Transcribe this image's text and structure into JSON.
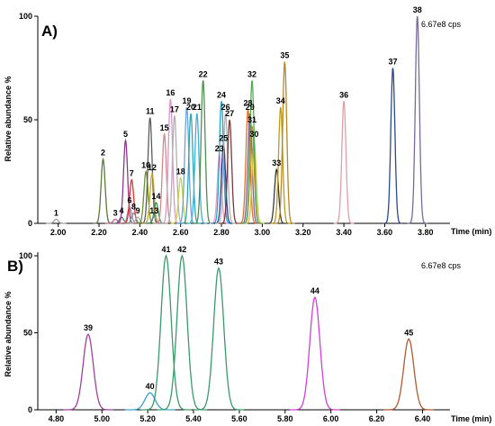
{
  "chart_data": [
    {
      "type": "line",
      "panel_label": "A)",
      "annotation": "6.67e8 cps",
      "xlabel": "Time (min)",
      "ylabel": "Relative abundance %",
      "xlim": [
        1.9,
        3.92
      ],
      "ylim": [
        0,
        100
      ],
      "xticks": [
        "2.00",
        "2.20",
        "2.40",
        "2.60",
        "2.80",
        "3.00",
        "3.20",
        "3.40",
        "3.60",
        "3.80"
      ],
      "yticks": [
        "0",
        "50",
        "100"
      ],
      "grid": false,
      "peaks": [
        {
          "label": "1",
          "rt": 1.99,
          "height": 2,
          "color": "#9aa0a6"
        },
        {
          "label": "2",
          "rt": 2.22,
          "height": 31,
          "color": "#5a7a3a"
        },
        {
          "label": "3",
          "rt": 2.28,
          "height": 2,
          "color": "#c06090"
        },
        {
          "label": "4",
          "rt": 2.31,
          "height": 3,
          "color": "#6a6a6a"
        },
        {
          "label": "5",
          "rt": 2.33,
          "height": 40,
          "color": "#8b3a8b"
        },
        {
          "label": "6",
          "rt": 2.35,
          "height": 8,
          "color": "#999999"
        },
        {
          "label": "7",
          "rt": 2.36,
          "height": 21,
          "color": "#e03030"
        },
        {
          "label": "8",
          "rt": 2.37,
          "height": 5,
          "color": "#888888"
        },
        {
          "label": "9",
          "rt": 2.39,
          "height": 3,
          "color": "#aaaaaa"
        },
        {
          "label": "10",
          "rt": 2.43,
          "height": 25,
          "color": "#6c8f2f"
        },
        {
          "label": "11",
          "rt": 2.45,
          "height": 51,
          "color": "#5a5a5a"
        },
        {
          "label": "12",
          "rt": 2.46,
          "height": 24,
          "color": "#c9a227"
        },
        {
          "label": "13",
          "rt": 2.47,
          "height": 3,
          "color": "#999999"
        },
        {
          "label": "14",
          "rt": 2.48,
          "height": 10,
          "color": "#3d8f5a"
        },
        {
          "label": "15",
          "rt": 2.52,
          "height": 43,
          "color": "#d08a8a"
        },
        {
          "label": "16",
          "rt": 2.55,
          "height": 60,
          "color": "#d49ac9"
        },
        {
          "label": "17",
          "rt": 2.57,
          "height": 52,
          "color": "#b0b0b0"
        },
        {
          "label": "18",
          "rt": 2.6,
          "height": 22,
          "color": "#c6d24a"
        },
        {
          "label": "19",
          "rt": 2.63,
          "height": 56,
          "color": "#6fa0d8"
        },
        {
          "label": "20",
          "rt": 2.65,
          "height": 53,
          "color": "#2aa8b8"
        },
        {
          "label": "21",
          "rt": 2.68,
          "height": 53,
          "color": "#40b0d8"
        },
        {
          "label": "22",
          "rt": 2.71,
          "height": 69,
          "color": "#4f8f4f"
        },
        {
          "label": "23",
          "rt": 2.79,
          "height": 33,
          "color": "#e8a0c8"
        },
        {
          "label": "24",
          "rt": 2.8,
          "height": 59,
          "color": "#1fa6c8"
        },
        {
          "label": "25",
          "rt": 2.81,
          "height": 38,
          "color": "#2a3f9a"
        },
        {
          "label": "26",
          "rt": 2.82,
          "height": 53,
          "color": "#b3b3b3"
        },
        {
          "label": "27",
          "rt": 2.84,
          "height": 50,
          "color": "#7a3a3a"
        },
        {
          "label": "28",
          "rt": 2.93,
          "height": 55,
          "color": "#e07020"
        },
        {
          "label": "29",
          "rt": 2.94,
          "height": 53,
          "color": "#7a5aa8"
        },
        {
          "label": "30",
          "rt": 2.96,
          "height": 40,
          "color": "#d4c040"
        },
        {
          "label": "31",
          "rt": 2.95,
          "height": 47,
          "color": "#c09020"
        },
        {
          "label": "32",
          "rt": 2.95,
          "height": 69,
          "color": "#4caf50"
        },
        {
          "label": "33",
          "rt": 3.07,
          "height": 26,
          "color": "#3a3a3a"
        },
        {
          "label": "34",
          "rt": 3.09,
          "height": 56,
          "color": "#b89c20"
        },
        {
          "label": "35",
          "rt": 3.11,
          "height": 78,
          "color": "#b8862a"
        },
        {
          "label": "36",
          "rt": 3.4,
          "height": 59,
          "color": "#e0a0a8"
        },
        {
          "label": "37",
          "rt": 3.64,
          "height": 75,
          "color": "#2a4a8a"
        },
        {
          "label": "38",
          "rt": 3.76,
          "height": 100,
          "color": "#7a6a9a"
        }
      ]
    },
    {
      "type": "line",
      "panel_label": "B)",
      "annotation": "6.67e8 cps",
      "xlabel": "Time (min)",
      "ylabel": "Relative abundance %",
      "xlim": [
        4.72,
        6.52
      ],
      "ylim": [
        0,
        100
      ],
      "xticks": [
        "4.80",
        "5.00",
        "5.20",
        "5.40",
        "5.60",
        "5.80",
        "6.00",
        "6.20",
        "6.40"
      ],
      "yticks": [
        "0",
        "50",
        "100"
      ],
      "grid": false,
      "peaks": [
        {
          "label": "39",
          "rt": 4.94,
          "height": 49,
          "color": "#a0409a"
        },
        {
          "label": "40",
          "rt": 5.21,
          "height": 11,
          "color": "#3aa0c8"
        },
        {
          "label": "41",
          "rt": 5.28,
          "height": 100,
          "color": "#3a9a6a"
        },
        {
          "label": "42",
          "rt": 5.35,
          "height": 100,
          "color": "#3a9a6a"
        },
        {
          "label": "43",
          "rt": 5.51,
          "height": 92,
          "color": "#3a9a6a"
        },
        {
          "label": "44",
          "rt": 5.93,
          "height": 73,
          "color": "#d040d8"
        },
        {
          "label": "45",
          "rt": 6.34,
          "height": 46,
          "color": "#b05a30"
        }
      ]
    }
  ]
}
